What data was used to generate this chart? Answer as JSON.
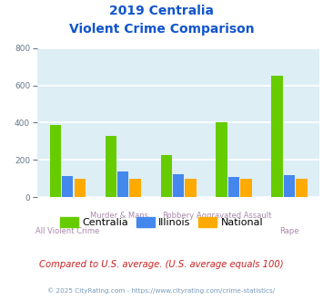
{
  "title_line1": "2019 Centralia",
  "title_line2": "Violent Crime Comparison",
  "categories": [
    "All Violent Crime",
    "Murder & Mans...",
    "Robbery",
    "Aggravated Assault",
    "Rape"
  ],
  "series": {
    "Centralia": [
      390,
      330,
      225,
      400,
      650
    ],
    "Illinois": [
      115,
      140,
      125,
      110,
      120
    ],
    "National": [
      100,
      100,
      100,
      100,
      100
    ]
  },
  "colors": {
    "Centralia": "#66cc00",
    "Illinois": "#4488ee",
    "National": "#ffaa00"
  },
  "ylim": [
    0,
    800
  ],
  "yticks": [
    0,
    200,
    400,
    600,
    800
  ],
  "plot_bg": "#ddeef5",
  "grid_color": "#ffffff",
  "title_color": "#1155cc",
  "subtitle_note": "Compared to U.S. average. (U.S. average equals 100)",
  "subtitle_note_color": "#cc2222",
  "footer": "© 2025 CityRating.com - https://www.cityrating.com/crime-statistics/",
  "footer_color": "#7799bb",
  "bar_width": 0.22
}
